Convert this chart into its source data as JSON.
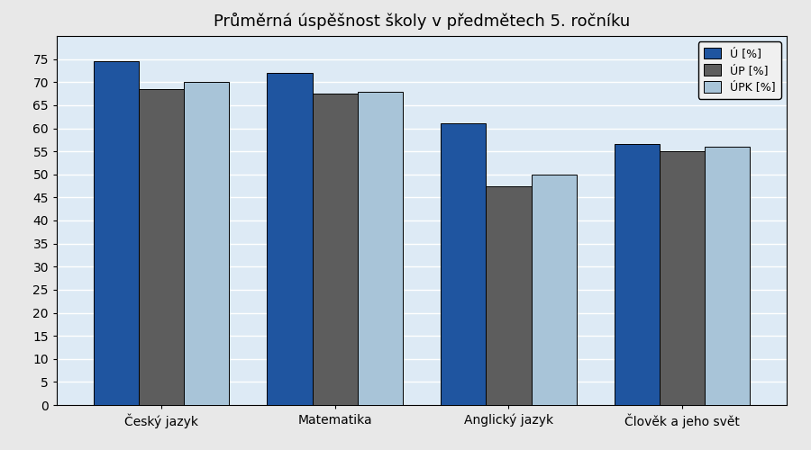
{
  "title": "Průměrná úspěšnost školy v předmětech 5. ročníku",
  "categories": [
    "Český jazyk",
    "Matematika",
    "Anglický jazyk",
    "Člověk a jeho svět"
  ],
  "series": [
    {
      "label": "Ú [%]",
      "values": [
        74.5,
        72.0,
        61.0,
        56.5
      ],
      "color": "#1f55a0"
    },
    {
      "label": "ÚP [%]",
      "values": [
        68.5,
        67.5,
        47.5,
        55.0
      ],
      "color": "#5d5d5d"
    },
    {
      "label": "ÚPK [%]",
      "values": [
        70.0,
        68.0,
        50.0,
        56.0
      ],
      "color": "#a8c4d8"
    }
  ],
  "ylim": [
    0,
    80
  ],
  "ytick_max": 75,
  "ytick_step": 5,
  "fig_bg_color": "#e8e8e8",
  "plot_bg_color": "#ddeaf5",
  "grid_color": "#ffffff",
  "bar_edge_color": "#000000",
  "title_fontsize": 13,
  "tick_fontsize": 10,
  "legend_fontsize": 9,
  "bar_width": 0.26,
  "legend_bg": "#f0f0f0"
}
